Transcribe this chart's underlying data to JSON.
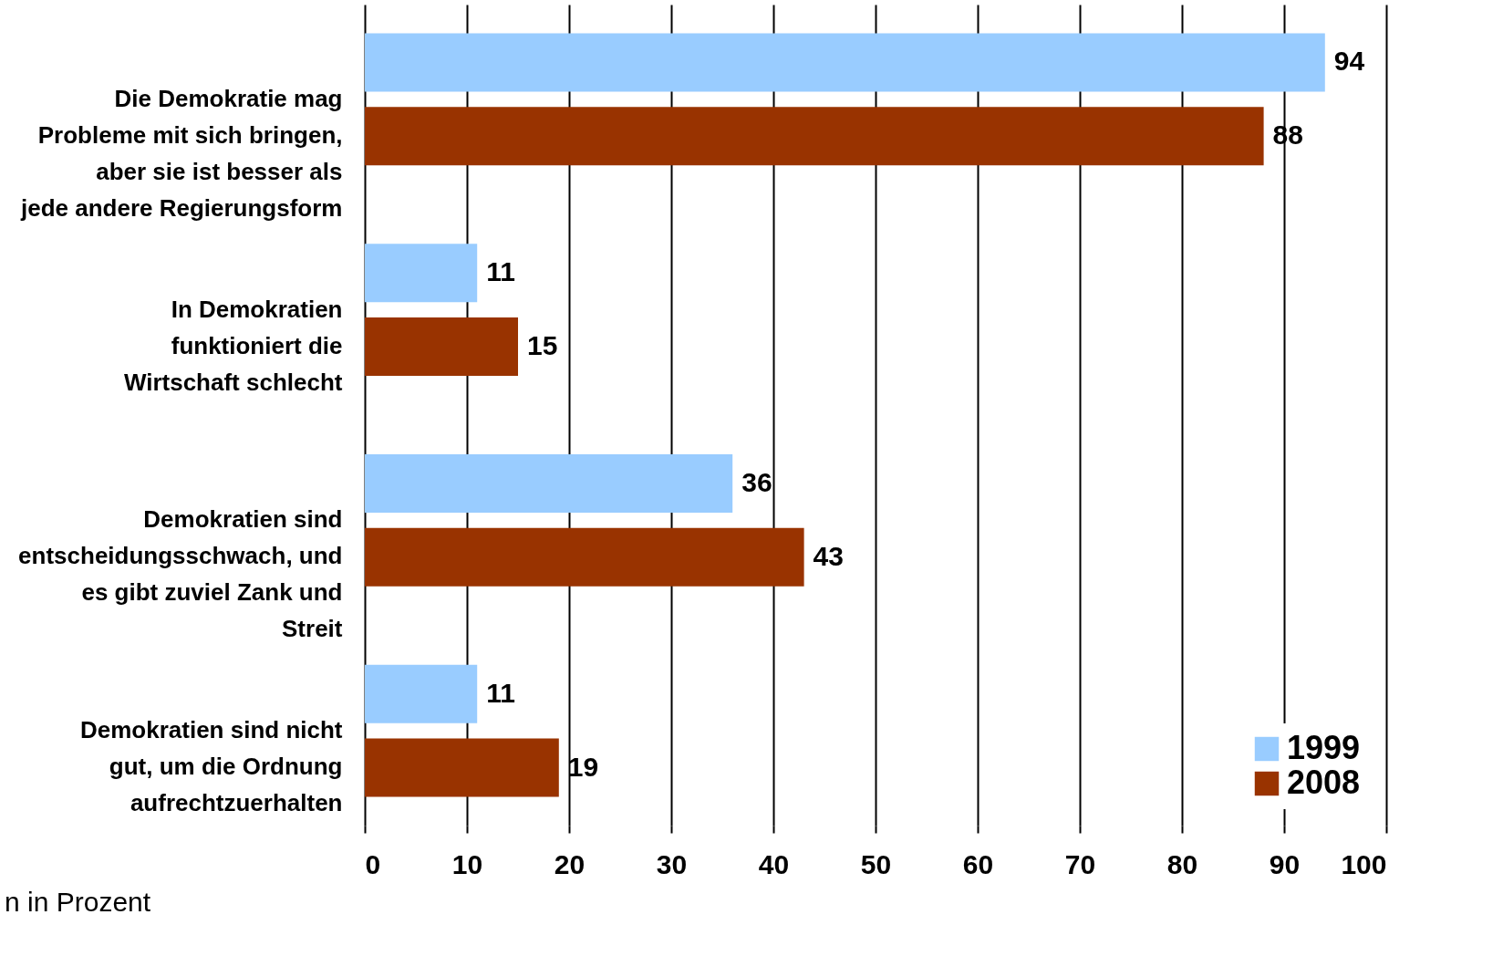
{
  "chart_data": {
    "type": "bar",
    "orientation": "horizontal",
    "categories": [
      "Die Demokratie mag Probleme mit sich bringen, aber sie ist besser als jede andere Regierungsform",
      "In Demokratien funktioniert die Wirtschaft schlecht",
      "Demokratien sind entscheidungsschwach, und es gibt zuviel Zank und Streit",
      "Demokratien sind nicht gut, um die Ordnung aufrechtzuerhalten"
    ],
    "series": [
      {
        "name": "1999",
        "color": "#99ccff",
        "values": [
          94,
          11,
          36,
          11
        ]
      },
      {
        "name": "2008",
        "color": "#993300",
        "values": [
          88,
          15,
          43,
          19
        ]
      }
    ],
    "xlim": [
      0,
      100
    ],
    "xticks": [
      0,
      10,
      20,
      30,
      40,
      50,
      60,
      70,
      80,
      90,
      100
    ],
    "grid": "x",
    "legend": "bottom right",
    "data_labels": true,
    "annotations": [
      "n in Prozent"
    ]
  }
}
